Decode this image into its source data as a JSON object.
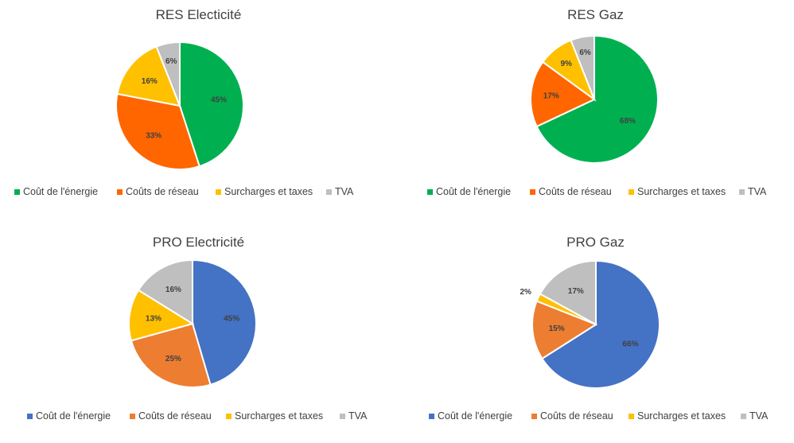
{
  "chart_data": [
    {
      "type": "pie",
      "title": "RES Electicité",
      "categories": [
        "Coût de l'énergie",
        "Coûts de réseau",
        "Surcharges et taxes",
        "TVA"
      ],
      "values": [
        45,
        33,
        16,
        6
      ],
      "labels": [
        "45%",
        "33%",
        "16%",
        "6%"
      ],
      "colors": [
        "#00B050",
        "#FF6600",
        "#FFC000",
        "#BFBFBF"
      ],
      "legend": "bottom"
    },
    {
      "type": "pie",
      "title": "RES Gaz",
      "categories": [
        "Coût de l'énergie",
        "Coûts de réseau",
        "Surcharges et taxes",
        "TVA"
      ],
      "values": [
        68,
        17,
        9,
        6
      ],
      "labels": [
        "68%",
        "17%",
        "9%",
        "6%"
      ],
      "colors": [
        "#00B050",
        "#FF6600",
        "#FFC000",
        "#BFBFBF"
      ],
      "legend": "bottom"
    },
    {
      "type": "pie",
      "title": "PRO Electricité",
      "categories": [
        "Coût de l'énergie",
        "Coûts de réseau",
        "Surcharges et taxes",
        "TVA"
      ],
      "values": [
        45,
        25,
        13,
        16
      ],
      "labels": [
        "45%",
        "25%",
        "13%",
        "16%"
      ],
      "colors": [
        "#4472C4",
        "#ED7D31",
        "#FFC000",
        "#BFBFBF"
      ],
      "legend": "bottom"
    },
    {
      "type": "pie",
      "title": "PRO Gaz",
      "categories": [
        "Coût de l'énergie",
        "Coûts de réseau",
        "Surcharges et taxes",
        "TVA"
      ],
      "values": [
        66,
        15,
        2,
        17
      ],
      "labels": [
        "66%",
        "15%",
        "2%",
        "17%"
      ],
      "colors": [
        "#4472C4",
        "#ED7D31",
        "#FFC000",
        "#BFBFBF"
      ],
      "legend": "bottom"
    }
  ]
}
